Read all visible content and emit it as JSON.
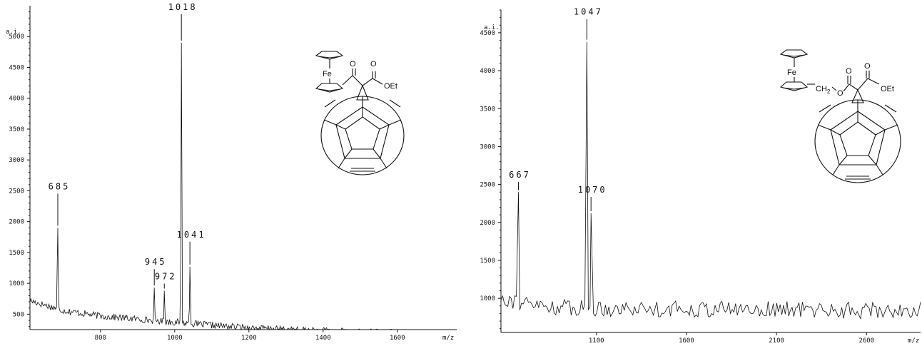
{
  "chart_data": [
    {
      "type": "line",
      "title": "",
      "xlabel": "m/z",
      "ylabel": "a.i.",
      "xlim": [
        610,
        1760
      ],
      "ylim": [
        250,
        5500
      ],
      "x_ticks": [
        800,
        1000,
        1200,
        1400,
        1600
      ],
      "y_ticks": [
        500,
        1000,
        1500,
        2000,
        2500,
        3000,
        3500,
        4000,
        4500,
        5000
      ],
      "peaks": [
        {
          "x": 685,
          "y": 1900,
          "label": "685"
        },
        {
          "x": 945,
          "y": 930,
          "label": "945"
        },
        {
          "x": 972,
          "y": 880,
          "label": "972"
        },
        {
          "x": 1018,
          "y": 4900,
          "label": "1018"
        },
        {
          "x": 1041,
          "y": 1270,
          "label": "1041"
        }
      ],
      "baseline": [
        {
          "x": 610,
          "y": 720
        },
        {
          "x": 700,
          "y": 560
        },
        {
          "x": 800,
          "y": 470
        },
        {
          "x": 900,
          "y": 420
        },
        {
          "x": 1000,
          "y": 370
        },
        {
          "x": 1100,
          "y": 320
        },
        {
          "x": 1200,
          "y": 280
        },
        {
          "x": 1300,
          "y": 250
        },
        {
          "x": 1400,
          "y": 230
        },
        {
          "x": 1500,
          "y": 215
        },
        {
          "x": 1600,
          "y": 200
        },
        {
          "x": 1760,
          "y": 190
        }
      ],
      "noise_amplitude": 55,
      "molecule": {
        "metal": "Fe",
        "group1": "O",
        "group2": "O",
        "ester": "OEt"
      }
    },
    {
      "type": "line",
      "title": "",
      "xlabel": "m/z",
      "ylabel": "a.i.",
      "xlim": [
        570,
        2900
      ],
      "ylim": [
        550,
        4800
      ],
      "x_ticks": [
        1100,
        1600,
        2100,
        2600
      ],
      "y_ticks": [
        1000,
        1500,
        2000,
        2500,
        3000,
        3500,
        4000,
        4500
      ],
      "peaks": [
        {
          "x": 667,
          "y": 2400,
          "label": "667"
        },
        {
          "x": 1047,
          "y": 4380,
          "label": "1047"
        },
        {
          "x": 1070,
          "y": 2120,
          "label": "1070"
        }
      ],
      "baseline": [
        {
          "x": 570,
          "y": 1030
        },
        {
          "x": 700,
          "y": 920
        },
        {
          "x": 900,
          "y": 880
        },
        {
          "x": 1100,
          "y": 870
        },
        {
          "x": 1600,
          "y": 860
        },
        {
          "x": 2100,
          "y": 855
        },
        {
          "x": 2600,
          "y": 840
        },
        {
          "x": 2900,
          "y": 840
        }
      ],
      "noise_amplitude": 110,
      "molecule": {
        "metal": "Fe",
        "linker": "CH",
        "linker_sub": "2",
        "group1": "O",
        "group2": "O",
        "group3": "O",
        "ester": "OEt"
      }
    }
  ]
}
